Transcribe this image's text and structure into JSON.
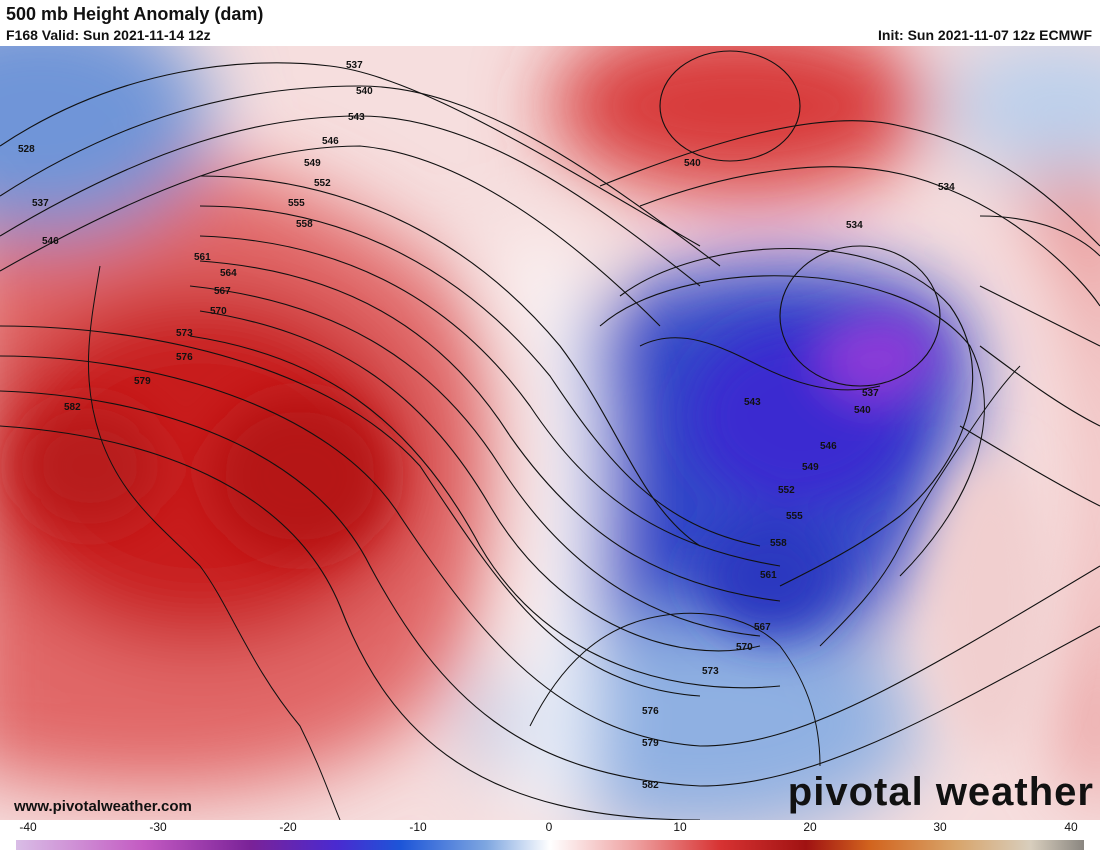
{
  "header": {
    "title": "500 mb Height Anomaly (dam)",
    "valid": "F168 Valid: Sun 2021-11-14 12z",
    "init": "Init: Sun 2021-11-07 12z ECMWF"
  },
  "footer": {
    "website": "www.pivotalweather.com",
    "brand": "pivotal weather"
  },
  "colorbar": {
    "ticks": [
      "-40",
      "-30",
      "-20",
      "-10",
      "0",
      "10",
      "20",
      "30",
      "40"
    ],
    "min": -40,
    "max": 40
  },
  "contour_labels": [
    "528",
    "537",
    "546",
    "537",
    "540",
    "543",
    "546",
    "549",
    "552",
    "555",
    "558",
    "561",
    "564",
    "567",
    "570",
    "573",
    "576",
    "579",
    "582",
    "540",
    "534",
    "534",
    "537",
    "540",
    "543",
    "546",
    "549",
    "552",
    "555",
    "558",
    "561",
    "567",
    "570",
    "573",
    "576",
    "579",
    "582"
  ],
  "colors": {
    "positive_anomaly": "#c81e1e",
    "negative_anomaly": "#2a36c8",
    "deep_negative": "#7b2fd0",
    "neutral": "#ffffff"
  }
}
